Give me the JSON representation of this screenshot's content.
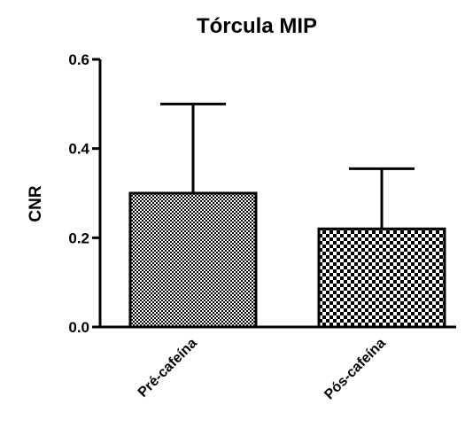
{
  "chart_data": {
    "type": "bar",
    "title": "Tórcula MIP",
    "xlabel": "",
    "ylabel": "CNR",
    "ylim": [
      0,
      0.6
    ],
    "yticks": [
      "0.0",
      "0.2",
      "0.4",
      "0.6"
    ],
    "categories": [
      "Pré-cafeína",
      "Pós-cafeína"
    ],
    "values": [
      0.3,
      0.22
    ],
    "error_upper": [
      0.5,
      0.355
    ],
    "grid": false,
    "legend": "none"
  }
}
